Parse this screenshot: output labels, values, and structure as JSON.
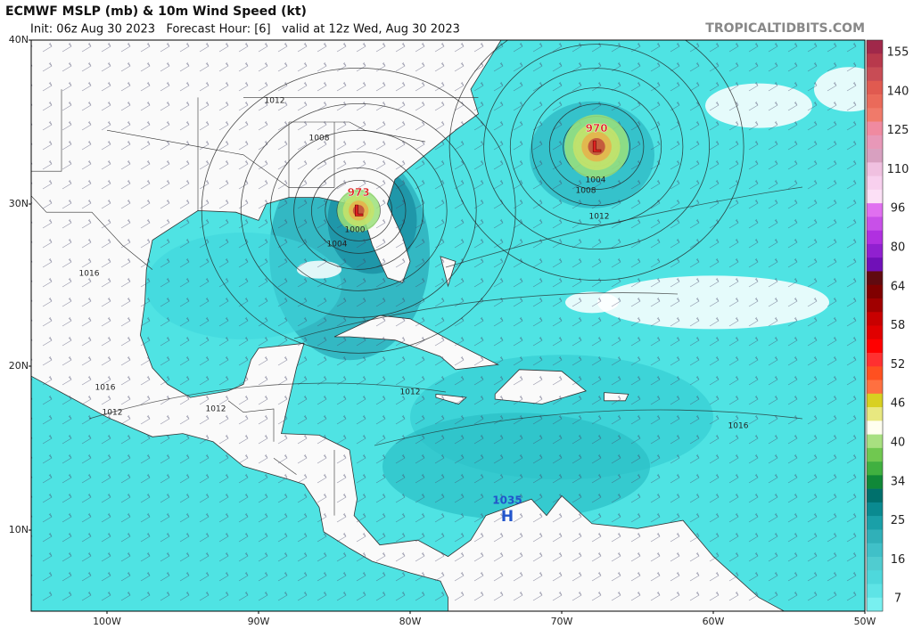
{
  "header": {
    "title": "ECMWF MSLP (mb) & 10m Wind Speed (kt)",
    "subtitle": "Init: 06z Aug 30 2023   Forecast Hour: [6]   valid at 12z Wed, Aug 30 2023",
    "source": "TROPICALTIDBITS.COM"
  },
  "axes": {
    "latitudes": [
      "40N",
      "30N",
      "20N",
      "10N"
    ],
    "longitudes": [
      "100W",
      "90W",
      "80W",
      "70W",
      "60W",
      "50W"
    ]
  },
  "colorbar": {
    "labels": [
      "155",
      "140",
      "125",
      "110",
      "96",
      "80",
      "64",
      "58",
      "52",
      "46",
      "40",
      "34",
      "25",
      "16",
      "7"
    ]
  },
  "map_labels": {
    "lows": [
      {
        "pressure": "973",
        "symbol": "L"
      },
      {
        "pressure": "970",
        "symbol": "L"
      }
    ],
    "highs": [
      {
        "pressure": "1035",
        "symbol": "H"
      }
    ],
    "isobars": [
      "1012",
      "1008",
      "1004",
      "1000",
      "1008",
      "1004",
      "1012",
      "1016",
      "1016",
      "1012",
      "1012",
      "1012",
      "1016"
    ]
  }
}
